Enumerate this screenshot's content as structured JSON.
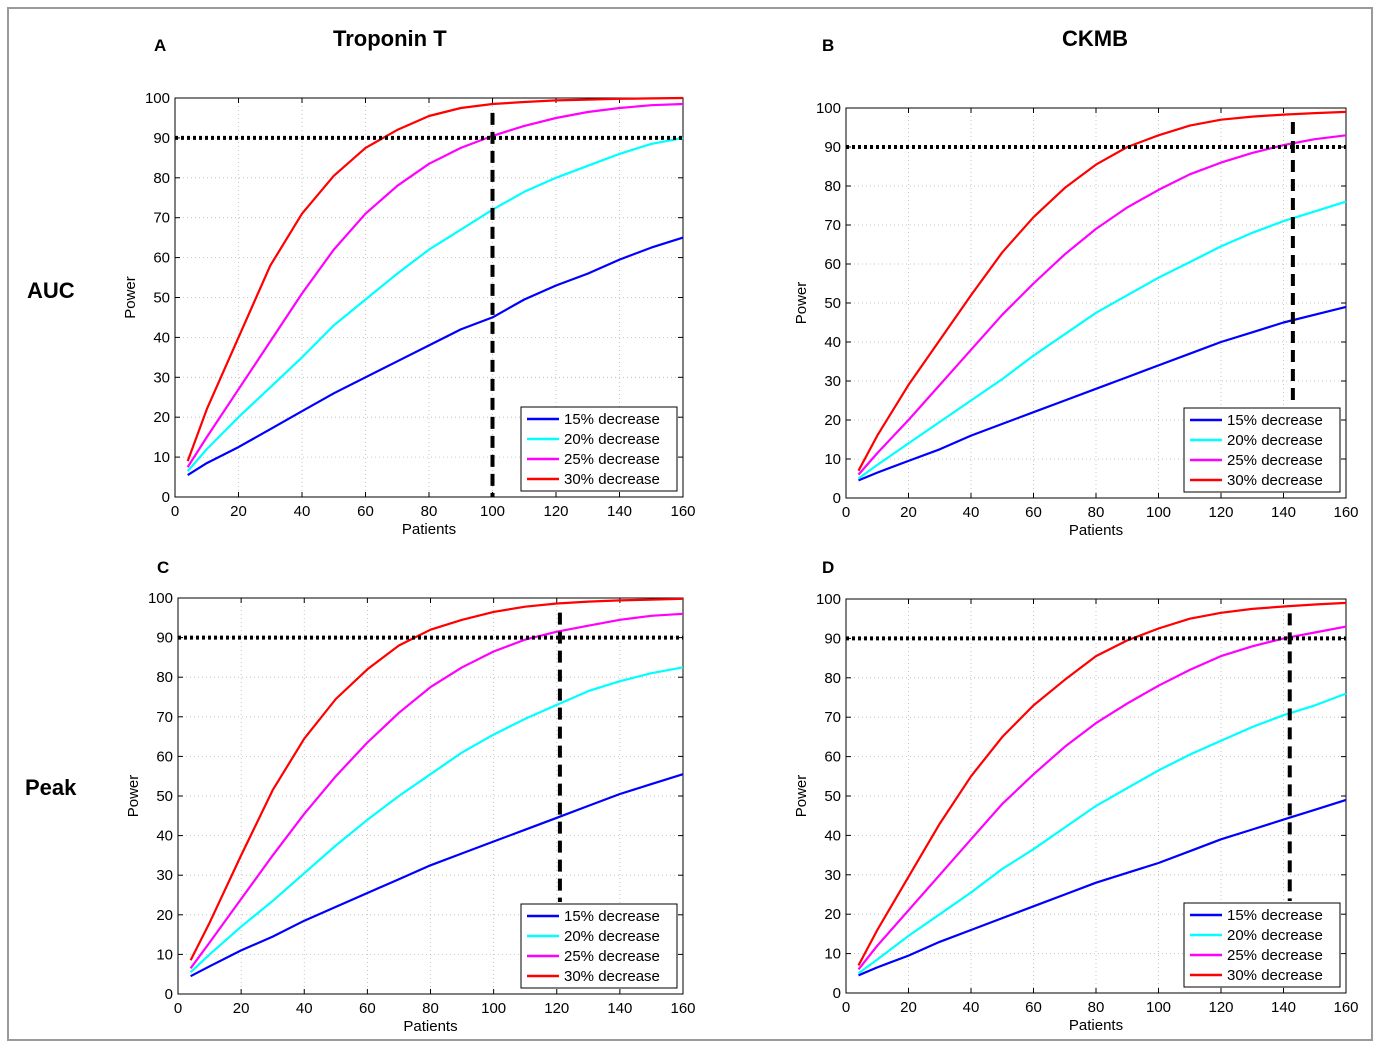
{
  "col_titles": [
    "Troponin T",
    "CKMB"
  ],
  "row_labels": [
    "AUC",
    "Peak"
  ],
  "chart_data": [
    {
      "panel": "A",
      "type": "line",
      "xlabel": "Patients",
      "ylabel": "Power",
      "xlim": [
        0,
        160
      ],
      "ylim": [
        0,
        100
      ],
      "xticks": [
        0,
        20,
        40,
        60,
        80,
        100,
        120,
        140,
        160
      ],
      "yticks": [
        0,
        10,
        20,
        30,
        40,
        50,
        60,
        70,
        80,
        90,
        100
      ],
      "grid": true,
      "legend_position": "bottom-right",
      "x": [
        4,
        10,
        20,
        30,
        40,
        50,
        60,
        70,
        80,
        90,
        100,
        110,
        120,
        130,
        140,
        150,
        160
      ],
      "series": [
        {
          "name": "15% decrease",
          "color": "#0000ff",
          "values": [
            5.5,
            8.5,
            12.5,
            17,
            21.5,
            26,
            30,
            34,
            38,
            42,
            45,
            49.5,
            53,
            56,
            59.5,
            62.5,
            65
          ]
        },
        {
          "name": "20% decrease",
          "color": "#00ffff",
          "values": [
            6.5,
            12,
            20,
            27.5,
            35,
            43,
            49.5,
            56,
            62,
            67,
            72,
            76.5,
            80,
            83,
            86,
            88.5,
            90
          ]
        },
        {
          "name": "25% decrease",
          "color": "#ff00ff",
          "values": [
            7.5,
            15,
            27,
            39,
            51,
            62,
            71,
            78,
            83.5,
            87.5,
            90.5,
            93,
            95,
            96.5,
            97.5,
            98.2,
            98.5
          ]
        },
        {
          "name": "30% decrease",
          "color": "#ff0000",
          "values": [
            9,
            22,
            40,
            58,
            71,
            80.5,
            87.5,
            92,
            95.5,
            97.5,
            98.5,
            99,
            99.4,
            99.6,
            99.8,
            99.9,
            100
          ]
        }
      ],
      "reference_lines": {
        "horizontal_y": 90,
        "vertical_x": 100
      }
    },
    {
      "panel": "B",
      "type": "line",
      "xlabel": "Patients",
      "ylabel": "Power",
      "xlim": [
        0,
        160
      ],
      "ylim": [
        0,
        100
      ],
      "xticks": [
        0,
        20,
        40,
        60,
        80,
        100,
        120,
        140,
        160
      ],
      "yticks": [
        0,
        10,
        20,
        30,
        40,
        50,
        60,
        70,
        80,
        90,
        100
      ],
      "grid": true,
      "legend_position": "bottom-right",
      "x": [
        4,
        10,
        20,
        30,
        40,
        50,
        60,
        70,
        80,
        90,
        100,
        110,
        120,
        130,
        140,
        150,
        160
      ],
      "series": [
        {
          "name": "15% decrease",
          "color": "#0000ff",
          "values": [
            4.5,
            6.5,
            9.5,
            12.5,
            16,
            19,
            22,
            25,
            28,
            31,
            34,
            37,
            40,
            42.5,
            45,
            47,
            49
          ]
        },
        {
          "name": "20% decrease",
          "color": "#00ffff",
          "values": [
            5,
            8.5,
            14,
            19.5,
            25,
            30.5,
            36.5,
            42,
            47.5,
            52,
            56.5,
            60.5,
            64.5,
            68,
            71,
            73.5,
            76
          ]
        },
        {
          "name": "25% decrease",
          "color": "#ff00ff",
          "values": [
            6,
            11.5,
            20,
            29,
            38,
            47,
            55,
            62.5,
            69,
            74.5,
            79,
            83,
            86,
            88.5,
            90.5,
            92,
            93
          ]
        },
        {
          "name": "30% decrease",
          "color": "#ff0000",
          "values": [
            7,
            16,
            29,
            40.5,
            52,
            63,
            72,
            79.5,
            85.5,
            90,
            93,
            95.5,
            97,
            97.8,
            98.3,
            98.7,
            99
          ]
        }
      ],
      "reference_lines": {
        "horizontal_y": 90,
        "vertical_x": 143
      }
    },
    {
      "panel": "C",
      "type": "line",
      "xlabel": "Patients",
      "ylabel": "Power",
      "xlim": [
        0,
        160
      ],
      "ylim": [
        0,
        100
      ],
      "xticks": [
        0,
        20,
        40,
        60,
        80,
        100,
        120,
        140,
        160
      ],
      "yticks": [
        0,
        10,
        20,
        30,
        40,
        50,
        60,
        70,
        80,
        90,
        100
      ],
      "grid": true,
      "legend_position": "bottom-right",
      "x": [
        4,
        10,
        20,
        30,
        40,
        50,
        60,
        70,
        80,
        90,
        100,
        110,
        120,
        130,
        140,
        150,
        160
      ],
      "series": [
        {
          "name": "15% decrease",
          "color": "#0000ff",
          "values": [
            4.5,
            7,
            11,
            14.5,
            18.5,
            22,
            25.5,
            29,
            32.5,
            35.5,
            38.5,
            41.5,
            44.5,
            47.5,
            50.5,
            53,
            55.5
          ]
        },
        {
          "name": "20% decrease",
          "color": "#00ffff",
          "values": [
            5.5,
            10,
            17,
            23.5,
            30.5,
            37.5,
            44,
            50,
            55.5,
            61,
            65.5,
            69.5,
            73,
            76.5,
            79,
            81,
            82.5
          ]
        },
        {
          "name": "25% decrease",
          "color": "#ff00ff",
          "values": [
            6.5,
            13,
            24,
            35,
            45.5,
            55,
            63.5,
            71,
            77.5,
            82.5,
            86.5,
            89.5,
            91.5,
            93,
            94.5,
            95.5,
            96
          ]
        },
        {
          "name": "30% decrease",
          "color": "#ff0000",
          "values": [
            8.5,
            18,
            35,
            51.5,
            64.5,
            74.5,
            82,
            88,
            92,
            94.5,
            96.5,
            97.8,
            98.6,
            99.1,
            99.4,
            99.6,
            99.8
          ]
        }
      ],
      "reference_lines": {
        "horizontal_y": 90,
        "vertical_x": 121
      }
    },
    {
      "panel": "D",
      "type": "line",
      "xlabel": "Patients",
      "ylabel": "Power",
      "xlim": [
        0,
        160
      ],
      "ylim": [
        0,
        100
      ],
      "xticks": [
        0,
        20,
        40,
        60,
        80,
        100,
        120,
        140,
        160
      ],
      "yticks": [
        0,
        10,
        20,
        30,
        40,
        50,
        60,
        70,
        80,
        90,
        100
      ],
      "grid": true,
      "legend_position": "bottom-right",
      "x": [
        4,
        10,
        20,
        30,
        40,
        50,
        60,
        70,
        80,
        90,
        100,
        110,
        120,
        130,
        140,
        150,
        160
      ],
      "series": [
        {
          "name": "15% decrease",
          "color": "#0000ff",
          "values": [
            4.5,
            6.5,
            9.5,
            13,
            16,
            19,
            22,
            25,
            28,
            30.5,
            33,
            36,
            39,
            41.5,
            44,
            46.5,
            49
          ]
        },
        {
          "name": "20% decrease",
          "color": "#00ffff",
          "values": [
            5,
            8.5,
            14.5,
            20,
            25.5,
            31.5,
            36.5,
            42,
            47.5,
            52,
            56.5,
            60.5,
            64,
            67.5,
            70.5,
            73,
            76
          ]
        },
        {
          "name": "25% decrease",
          "color": "#ff00ff",
          "values": [
            6,
            12,
            21,
            30,
            39,
            48,
            55.5,
            62.5,
            68.5,
            73.5,
            78,
            82,
            85.5,
            88,
            90,
            91.5,
            93
          ]
        },
        {
          "name": "30% decrease",
          "color": "#ff0000",
          "values": [
            7,
            16,
            29.5,
            43,
            55,
            65,
            73,
            79.5,
            85.5,
            89.5,
            92.5,
            95,
            96.5,
            97.5,
            98.1,
            98.6,
            99
          ]
        }
      ],
      "reference_lines": {
        "horizontal_y": 90,
        "vertical_x": 142
      }
    }
  ]
}
